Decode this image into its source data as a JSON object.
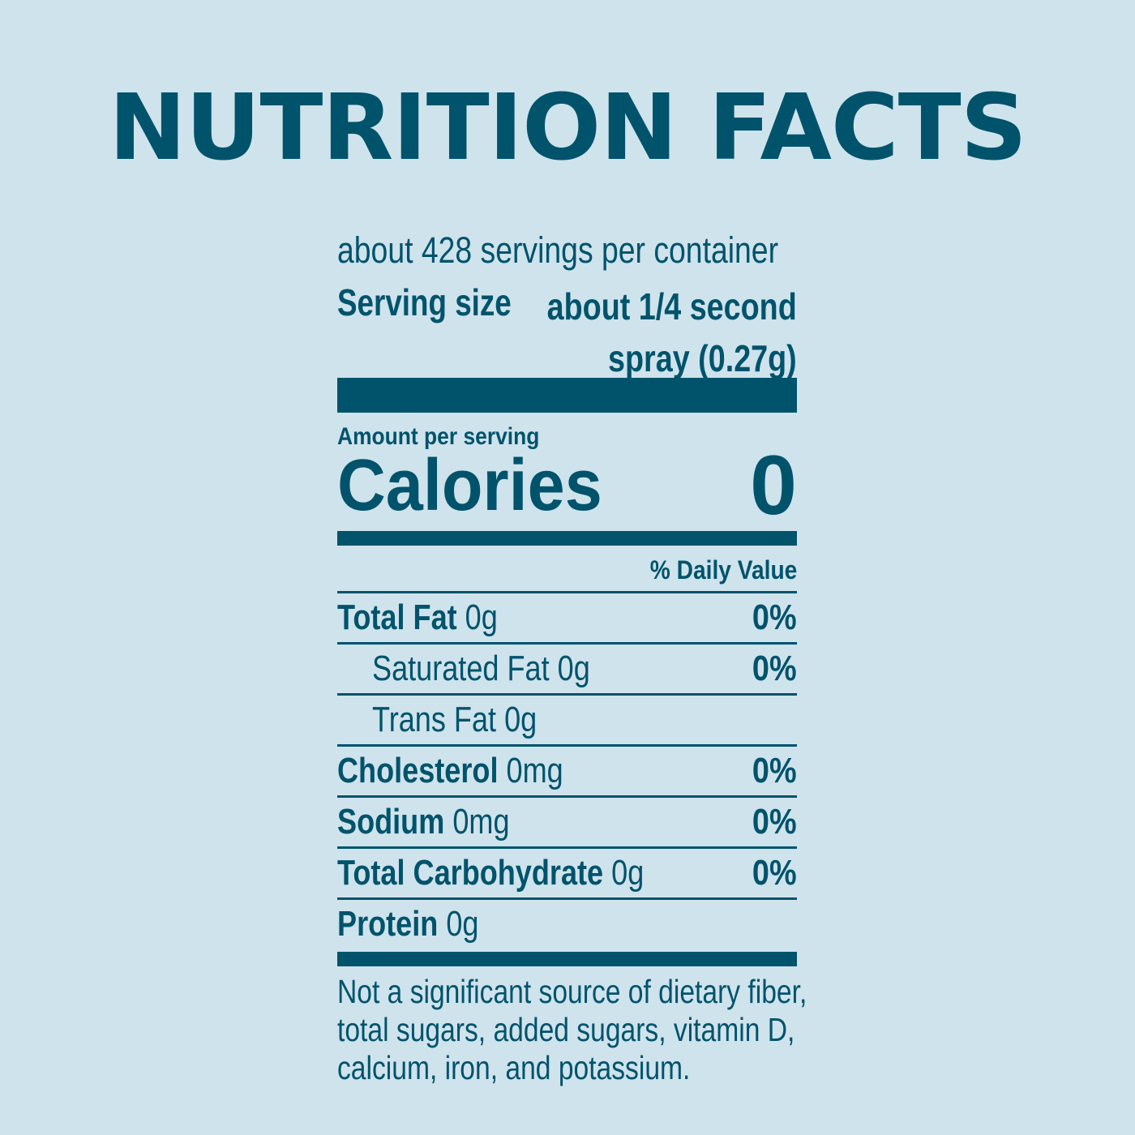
{
  "title": "NUTRITION FACTS",
  "label": {
    "servings_per_container": "about 428 servings per container",
    "serving_size_label": "Serving size",
    "serving_size_value_line1": "about 1/4 second",
    "serving_size_value_line2": "spray (0.27g)",
    "amount_per_serving": "Amount per serving",
    "calories_label": "Calories",
    "calories_value": "0",
    "daily_value_header": "% Daily Value",
    "nutrients": [
      {
        "name": "Total Fat",
        "amount": "0g",
        "dv": "0%"
      },
      {
        "name": "Saturated Fat",
        "amount": "0g",
        "dv": "0%"
      },
      {
        "name": "Trans Fat",
        "amount": "0g",
        "dv": ""
      },
      {
        "name": "Cholesterol",
        "amount": "0mg",
        "dv": "0%"
      },
      {
        "name": "Sodium",
        "amount": "0mg",
        "dv": "0%"
      },
      {
        "name": "Total Carbohydrate",
        "amount": "0g",
        "dv": "0%"
      },
      {
        "name": "Protein",
        "amount": "0g",
        "dv": ""
      }
    ],
    "footnote_lines": [
      "Not a significant source of dietary fiber,",
      "total sugars, added sugars, vitamin D,",
      "calcium, iron, and potassium."
    ]
  },
  "colors": {
    "background": "#cfe3ec",
    "ink": "#01536c"
  }
}
